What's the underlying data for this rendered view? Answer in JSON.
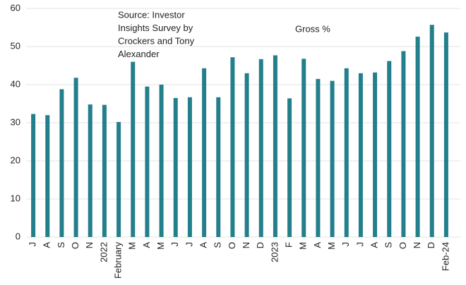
{
  "chart_data": {
    "type": "bar",
    "annotations": [
      "Source: Investor",
      "Insights Survey by",
      "Crockers and Tony",
      "Alexander"
    ],
    "series": [
      {
        "name": "Gross %",
        "color": "#237f8c",
        "values": [
          32.3,
          32,
          38.8,
          41.8,
          34.8,
          34.7,
          30.2,
          46,
          39.5,
          40,
          36.5,
          36.7,
          44.3,
          36.7,
          47.2,
          43,
          46.7,
          47.7,
          36.4,
          46.8,
          41.5,
          41,
          44.3,
          43,
          43.2,
          46.2,
          48.8,
          52.6,
          55.7,
          53.7
        ]
      }
    ],
    "categories": [
      "J",
      "A",
      "S",
      "O",
      "N",
      "2022",
      "February",
      "M",
      "A",
      "M",
      "J",
      "J",
      "A",
      "S",
      "O",
      "N",
      "D",
      "2023",
      "F",
      "M",
      "A",
      "M",
      "J",
      "J",
      "A",
      "S",
      "O",
      "N",
      "D",
      "Feb-24"
    ],
    "ylim": [
      0,
      60
    ],
    "yticks": [
      0,
      10,
      20,
      30,
      40,
      50,
      60
    ],
    "grid": true
  }
}
